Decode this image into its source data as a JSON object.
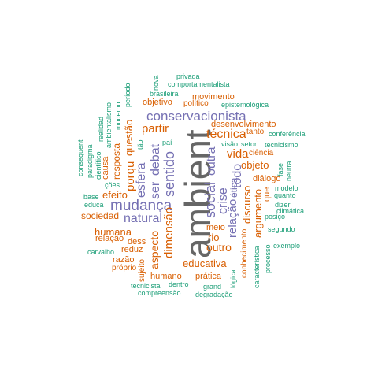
{
  "colors": {
    "teal": "#1b9e77",
    "orange": "#d95f02",
    "purple": "#7570b3",
    "gray": "#666666"
  },
  "words": {
    "ambient": "ambient",
    "conservacionista": "conservacionista",
    "mudanca": "mudança",
    "sentido": "sentido",
    "social": "social",
    "natural": "natural",
    "esfera": "esfera",
    "ser": "ser",
    "debat": "debat",
    "outra": "outra",
    "crise": "crise",
    "tecnica": "técnica",
    "partir": "partir",
    "vida": "vida",
    "todo": "todo",
    "relacao": "relação",
    "etica": "ética",
    "porque": "porqu",
    "dimensao": "dimensão",
    "aspecto": "aspecto",
    "educativa": "educativa",
    "outro": "outro",
    "rio": "rio",
    "objeto": "objeto",
    "discurso": "discurso",
    "argumento": "argumento",
    "humana": "humana",
    "efeito": "efeito",
    "questao": "questão",
    "resposta": "resposta",
    "sociedad": "sociedad",
    "humano": "humano",
    "pratica": "prática",
    "movimento": "movimento",
    "desenvolvimento": "desenvolvimento",
    "objetivo": "objetivo",
    "politico": "político",
    "dialogo": "diálogo",
    "conhecimento": "conhecimento",
    "meio": "meio",
    "tanto": "tanto",
    "ciencia": "ciência",
    "que": "que",
    "relacao2": "relação",
    "dess": "dess",
    "reduz": "reduz",
    "razao": "razão",
    "sujeito": "sujeito",
    "causa": "causa",
    "cientifico": "científico",
    "moderno": "moderno",
    "periodo": "período",
    "ambientalismo": "ambientalismo",
    "realidad": "realidad",
    "paradigma": "paradigma",
    "consequent": "consequent",
    "coes": "ções",
    "base": "base",
    "educa": "educa",
    "carvalho": "carvalho",
    "proprio": "próprio",
    "tecnicista": "tecnicista",
    "dentro": "dentro",
    "grand": "grand",
    "compreensao": "compreensão",
    "degradacao": "degradação",
    "logica": "lógica",
    "caracteristica": "característica",
    "processo": "processo",
    "exemplo": "exemplo",
    "segundo": "segundo",
    "posico": "posiço",
    "climatica": "climática",
    "dizer": "dizer",
    "quanto": "quanto",
    "modelo": "modelo",
    "neutra": "neutra",
    "fase": "fase",
    "tecnicismo": "tecnicismo",
    "conferencia": "conferência",
    "setor": "setor",
    "visao": "visão",
    "epistemologica": "epistemológica",
    "privada": "privada",
    "comportamentalista": "comportamentalista",
    "nova": "nova",
    "brasileira": "brasileira",
    "pai": "paí",
    "tao": "tão"
  }
}
